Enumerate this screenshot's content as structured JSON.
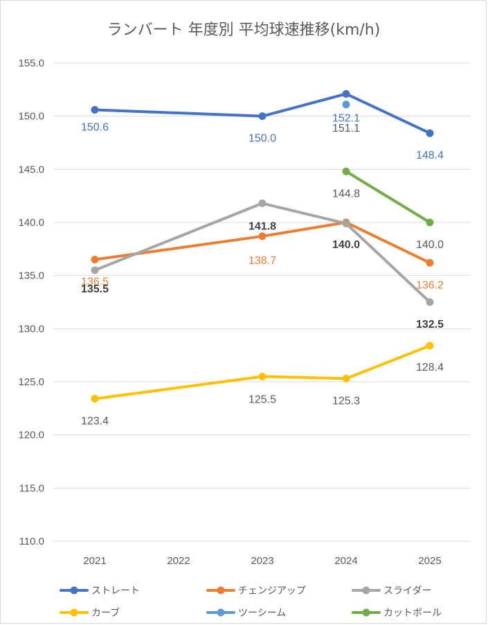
{
  "chart_data": {
    "type": "line",
    "title": "ランバート 年度別 平均球速推移(km/h)",
    "categories": [
      "2021",
      "2022",
      "2023",
      "2024",
      "2025"
    ],
    "ylim": [
      110,
      155
    ],
    "yticks": [
      "110.0",
      "115.0",
      "120.0",
      "125.0",
      "130.0",
      "135.0",
      "140.0",
      "145.0",
      "150.0",
      "155.0"
    ],
    "grid": true,
    "legend_position": "bottom",
    "series": [
      {
        "name": "ストレート",
        "color": "#4472C4",
        "values": [
          150.6,
          null,
          150.0,
          152.1,
          148.4
        ],
        "labels": [
          "150.6",
          "",
          "150.0",
          "152.1",
          "148.4"
        ]
      },
      {
        "name": "チェンジアップ",
        "color": "#ED7D31",
        "values": [
          136.5,
          null,
          138.7,
          140.0,
          136.2
        ],
        "labels": [
          "136.5",
          "",
          "138.7",
          "140.0",
          "136.2"
        ]
      },
      {
        "name": "スライダー",
        "color": "#A5A5A5",
        "values": [
          135.5,
          null,
          141.8,
          139.9,
          132.5
        ],
        "labels": [
          "135.5",
          "",
          "141.8",
          "",
          "132.5"
        ]
      },
      {
        "name": "カーブ",
        "color": "#FFC000",
        "values": [
          123.4,
          null,
          125.5,
          125.3,
          128.4
        ],
        "labels": [
          "123.4",
          "",
          "125.5",
          "125.3",
          "128.4"
        ]
      },
      {
        "name": "ツーシーム",
        "color": "#5B9BD5",
        "values": [
          null,
          null,
          null,
          151.1,
          null
        ],
        "labels": [
          "",
          "",
          "",
          "151.1",
          ""
        ]
      },
      {
        "name": "カットボール",
        "color": "#70AD47",
        "values": [
          null,
          null,
          null,
          144.8,
          140.0
        ],
        "labels": [
          "",
          "",
          "",
          "144.8",
          "140.0"
        ]
      }
    ]
  }
}
